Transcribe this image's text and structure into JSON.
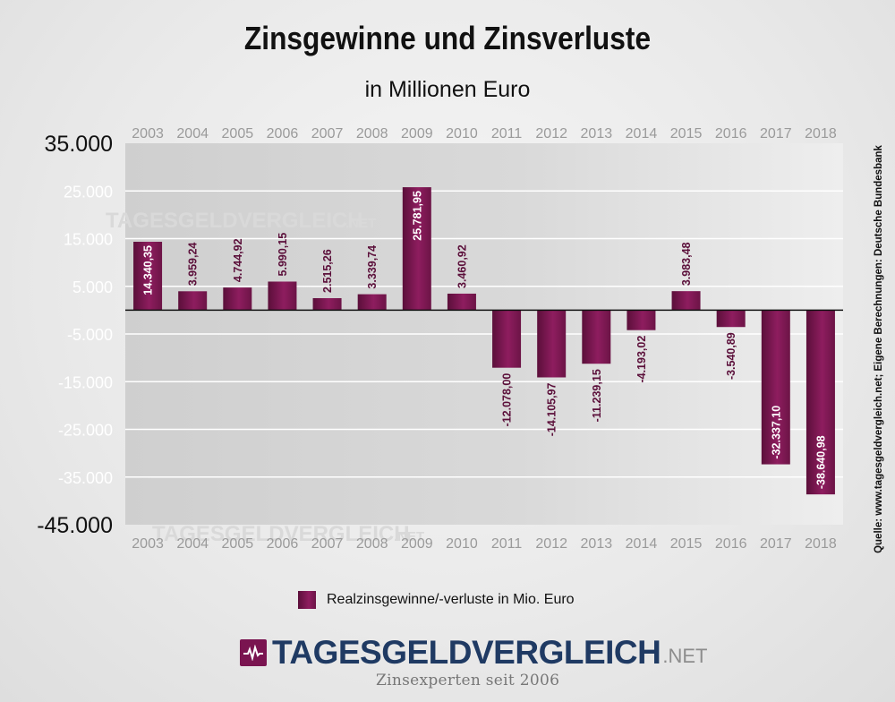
{
  "header": {
    "title": "Zinsgewinne und Zinsverluste",
    "subtitle": "in Millionen Euro"
  },
  "chart_data": {
    "type": "bar",
    "title": "Zinsgewinne und Zinsverluste",
    "subtitle": "in Millionen Euro",
    "categories": [
      "2003",
      "2004",
      "2005",
      "2006",
      "2007",
      "2008",
      "2009",
      "2010",
      "2011",
      "2012",
      "2013",
      "2014",
      "2015",
      "2016",
      "2017",
      "2018"
    ],
    "series": [
      {
        "name": "Realzinsgewinne/-verluste in Mio. Euro",
        "values": [
          14340.35,
          3959.24,
          4744.92,
          5990.15,
          2515.26,
          3339.74,
          25781.95,
          3460.92,
          -12078.0,
          -14105.97,
          -11239.15,
          -4193.02,
          3983.48,
          -3540.89,
          -32337.1,
          -38640.98
        ],
        "labels": [
          "14.340,35",
          "3.959,24",
          "4.744,92",
          "5.990,15",
          "2.515,26",
          "3.339,74",
          "25.781,95",
          "3.460,92",
          "-12.078,00",
          "-14.105,97",
          "-11.239,15",
          "-4.193,02",
          "3.983,48",
          "-3.540,89",
          "-32.337,10",
          "-38.640,98"
        ]
      }
    ],
    "yticks": [
      "35.000",
      "25.000",
      "15.000",
      "5.000",
      "-5.000",
      "-15.000",
      "-25.000",
      "-35.000",
      "-45.000"
    ],
    "ytick_values": [
      35000,
      25000,
      15000,
      5000,
      -5000,
      -15000,
      -25000,
      -35000,
      -45000
    ],
    "ylim": [
      -45000,
      35000
    ],
    "grid": true,
    "legend_position": "bottom-center",
    "colors": {
      "bar": "#7d1a55",
      "bar_dark": "#5b0f3a",
      "grid": "#ffffff",
      "plot_bg": "#d6d6d6",
      "zero_line": "#111111"
    }
  },
  "legend": {
    "label": "Realzinsgewinne/-verluste in Mio. Euro"
  },
  "source": {
    "text": "Quelle: www.tagesgeldvergleich.net; Eigene Berechnungen: Deutsche Bundesbank"
  },
  "watermark": {
    "text": "TAGESGELDVERGLEICH",
    "suffix": ".NET"
  },
  "logo": {
    "text": "TAGESGELDVERGLEICH",
    "suffix": ".NET",
    "tagline": "Zinsexperten seit 2006"
  }
}
